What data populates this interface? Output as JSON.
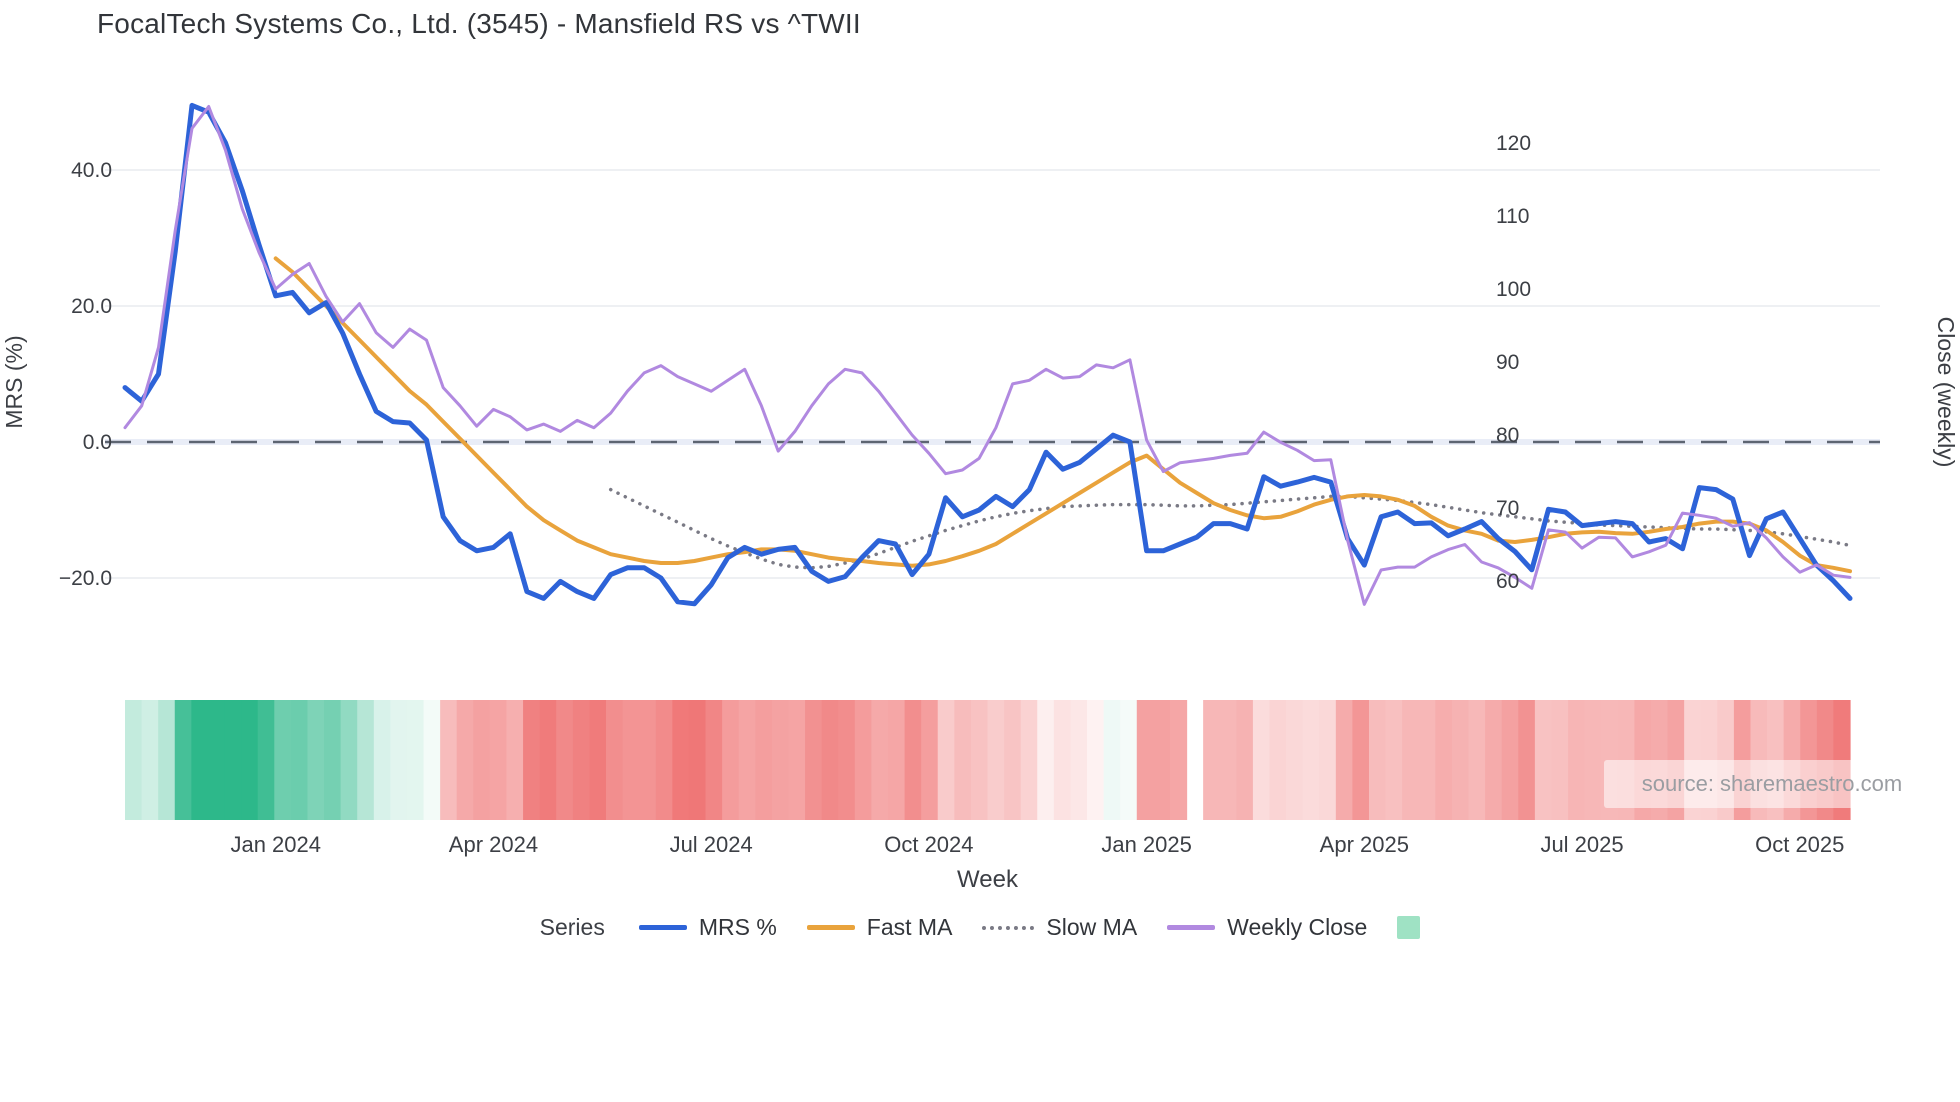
{
  "title": "FocalTech Systems Co., Ltd. (3545) - Mansfield RS vs ^TWII",
  "watermark": "source: sharemaestro.com",
  "axes": {
    "left": {
      "title": "MRS (%)",
      "ticks": [
        {
          "v": 40,
          "label": "40.0"
        },
        {
          "v": 20,
          "label": "20.0"
        },
        {
          "v": 0,
          "label": "0.0"
        },
        {
          "v": -20,
          "label": "−20.0"
        }
      ]
    },
    "right": {
      "title": "Close (weekly)",
      "ticks": [
        {
          "v": 120,
          "label": "120"
        },
        {
          "v": 110,
          "label": "110"
        },
        {
          "v": 100,
          "label": "100"
        },
        {
          "v": 90,
          "label": "90"
        },
        {
          "v": 80,
          "label": "80"
        },
        {
          "v": 70,
          "label": "70"
        },
        {
          "v": 60,
          "label": "60"
        }
      ]
    },
    "x": {
      "title": "Week",
      "ticks": [
        {
          "week": 9,
          "label": "Jan 2024"
        },
        {
          "week": 22,
          "label": "Apr 2024"
        },
        {
          "week": 35,
          "label": "Jul 2024"
        },
        {
          "week": 48,
          "label": "Oct 2024"
        },
        {
          "week": 61,
          "label": "Jan 2025"
        },
        {
          "week": 74,
          "label": "Apr 2025"
        },
        {
          "week": 87,
          "label": "Jul 2025"
        },
        {
          "week": 100,
          "label": "Oct 2025"
        }
      ]
    }
  },
  "legend": {
    "title": "Series",
    "items": [
      {
        "label": "MRS %",
        "type": "line",
        "color": "#2d63d8"
      },
      {
        "label": "Fast MA",
        "type": "line",
        "color": "#e9a33c"
      },
      {
        "label": "Slow MA",
        "type": "dotted",
        "color": "#7a7a85"
      },
      {
        "label": "Weekly Close",
        "type": "line",
        "color": "#b189e0"
      },
      {
        "label": "",
        "type": "square",
        "color": "#9fe2c4"
      }
    ]
  },
  "colors": {
    "grid": "#eef0f3",
    "zero_line": "#5d6572",
    "zero_band": "#e9edf7",
    "tick_text": "#3c3f45",
    "strip_green": "#2db88a",
    "strip_red": "#ee6b6b"
  },
  "chart_data": {
    "type": "line",
    "title": "FocalTech Systems Co., Ltd. (3545) - Mansfield RS vs ^TWII",
    "xlabel": "Week",
    "ylabel_left": "MRS (%)",
    "ylabel_right": "Close (weekly)",
    "x_unit": "week_index",
    "n_weeks": 104,
    "x_range_weeks": [
      "Nov 2023",
      "Nov 2025"
    ],
    "left_axis_range": [
      -27,
      55
    ],
    "right_axis_range": [
      55,
      128
    ],
    "zero_reference_line": 0,
    "grid": true,
    "legend_position": "bottom",
    "series": [
      {
        "name": "MRS %",
        "axis": "left",
        "color": "#2d63d8",
        "width": 5,
        "style": "solid",
        "values": [
          8,
          6,
          10,
          28,
          49.5,
          48.5,
          44,
          37,
          29,
          21.5,
          22,
          19,
          20.5,
          16,
          10,
          4.5,
          3,
          2.8,
          0.3,
          -11,
          -14.5,
          -16,
          -15.5,
          -13.5,
          -22,
          -23,
          -20.5,
          -22,
          -23,
          -19.5,
          -18.5,
          -18.5,
          -20,
          -23.5,
          -23.8,
          -21,
          -17,
          -15.5,
          -16.5,
          -15.8,
          -15.5,
          -19,
          -20.5,
          -19.8,
          -17,
          -14.5,
          -15,
          -19.5,
          -16.5,
          -8.2,
          -11,
          -10,
          -8,
          -9.5,
          -7,
          -1.5,
          -4,
          -3,
          -1,
          1,
          0,
          -16,
          -16,
          -15,
          -14,
          -12,
          -12,
          -12.8,
          -5.1,
          -6.5,
          -5.9,
          -5.2,
          -5.9,
          -14.2,
          -18.1,
          -11,
          -10.3,
          -12,
          -11.9,
          -13.8,
          -12.8,
          -11.7,
          -14.2,
          -16.1,
          -18.8,
          -9.9,
          -10.3,
          -12.3,
          -12,
          -11.7,
          -12,
          -14.7,
          -14.2,
          -15.7,
          -6.7,
          -7,
          -8.4,
          -16.7,
          -11.3,
          -10.3,
          -14.2,
          -18.1,
          -20.4,
          -23
        ]
      },
      {
        "name": "Fast MA",
        "axis": "left",
        "color": "#e9a33c",
        "width": 4,
        "style": "solid",
        "values": [
          null,
          null,
          null,
          null,
          null,
          null,
          null,
          null,
          null,
          27,
          25,
          22.5,
          20,
          17.5,
          15,
          12.5,
          10,
          7.5,
          5.5,
          3,
          0.5,
          -2,
          -4.5,
          -7,
          -9.5,
          -11.5,
          -13,
          -14.5,
          -15.5,
          -16.5,
          -17,
          -17.5,
          -17.8,
          -17.8,
          -17.5,
          -17,
          -16.5,
          -16.2,
          -15.8,
          -15.8,
          -16,
          -16.5,
          -17,
          -17.3,
          -17.5,
          -17.8,
          -18,
          -18.2,
          -18,
          -17.5,
          -16.8,
          -16,
          -15,
          -13.5,
          -12,
          -10.5,
          -9,
          -7.5,
          -6,
          -4.5,
          -3,
          -2,
          -4,
          -6,
          -7.5,
          -9,
          -10,
          -10.8,
          -11.2,
          -11,
          -10.2,
          -9.2,
          -8.5,
          -8,
          -7.8,
          -8,
          -8.5,
          -9.4,
          -11,
          -12.3,
          -13,
          -13.5,
          -14.5,
          -14.7,
          -14.4,
          -14,
          -13.5,
          -13.3,
          -13.2,
          -13.4,
          -13.5,
          -13.2,
          -12.8,
          -12.5,
          -12,
          -11.7,
          -11.7,
          -12,
          -13,
          -14.7,
          -16.7,
          -18.1,
          -18.5,
          -19
        ]
      },
      {
        "name": "Slow MA",
        "axis": "left",
        "color": "#7a7a85",
        "width": 3.5,
        "style": "dotted",
        "values": [
          null,
          null,
          null,
          null,
          null,
          null,
          null,
          null,
          null,
          null,
          null,
          null,
          null,
          null,
          null,
          null,
          null,
          null,
          null,
          null,
          null,
          null,
          null,
          null,
          null,
          null,
          null,
          null,
          null,
          -7,
          -8.2,
          -9.4,
          -10.6,
          -11.8,
          -13,
          -14.2,
          -15.3,
          -16.3,
          -17.2,
          -18,
          -18.4,
          -18.5,
          -18.3,
          -17.8,
          -17.2,
          -16.4,
          -15.5,
          -14.6,
          -13.8,
          -13,
          -12.3,
          -11.6,
          -11,
          -10.5,
          -10.1,
          -9.8,
          -9.5,
          -9.4,
          -9.3,
          -9.2,
          -9.2,
          -9.2,
          -9.3,
          -9.4,
          -9.4,
          -9.3,
          -9.2,
          -9,
          -8.8,
          -8.6,
          -8.4,
          -8.2,
          -8,
          -8,
          -8.2,
          -8.4,
          -8.6,
          -8.9,
          -9.2,
          -9.6,
          -10,
          -10.4,
          -10.7,
          -11,
          -11.3,
          -11.6,
          -11.8,
          -12,
          -12.2,
          -12.3,
          -12.4,
          -12.5,
          -12.6,
          -12.7,
          -12.8,
          -12.8,
          -12.9,
          -13,
          -13.2,
          -13.5,
          -13.9,
          -14.3,
          -14.7,
          -15.2
        ]
      },
      {
        "name": "Weekly Close",
        "axis": "right",
        "color": "#b189e0",
        "width": 3,
        "style": "solid",
        "values": [
          81,
          84,
          92,
          108,
          122,
          125,
          119,
          111,
          105,
          100,
          102,
          103.5,
          99,
          95.5,
          98,
          94,
          92,
          94.5,
          93,
          86.5,
          84,
          81.2,
          83.5,
          82.5,
          80.7,
          81.5,
          80.5,
          82,
          81,
          83,
          86,
          88.5,
          89.5,
          88,
          87,
          86,
          87.5,
          89,
          84,
          77.8,
          80.5,
          84,
          87,
          89,
          88.5,
          86,
          83,
          80,
          77.5,
          74.7,
          75.2,
          76.8,
          81,
          87,
          87.5,
          89,
          87.8,
          88,
          89.6,
          89.2,
          90.3,
          79.3,
          75,
          76.2,
          76.5,
          76.8,
          77.2,
          77.5,
          80.4,
          79,
          77.9,
          76.5,
          76.6,
          65.6,
          56.8,
          61.5,
          61.9,
          61.9,
          63.3,
          64.3,
          65,
          62.6,
          61.8,
          60.5,
          59,
          67,
          66.7,
          64.5,
          66,
          65.9,
          63.3,
          64,
          64.9,
          69.3,
          69,
          68.6,
          67.5,
          68,
          65.9,
          63.3,
          61.2,
          62.2,
          60.8,
          60.5
        ]
      }
    ],
    "heat_strip": {
      "description": "weekly band below chart colored by MRS value: green positive, red negative, intensity by magnitude",
      "source_series": "MRS %",
      "gap_weeks": [
        64
      ],
      "green": "#2db88a",
      "red": "#ee6b6b"
    }
  }
}
